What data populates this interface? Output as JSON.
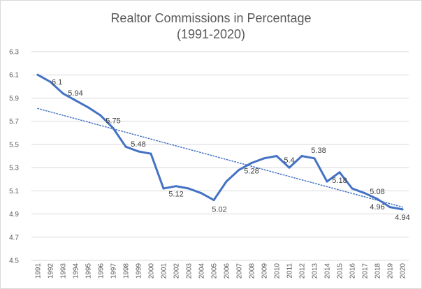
{
  "chart_data": {
    "type": "line",
    "title": "Realtor Commissions in Percentage",
    "subtitle": "(1991-2020)",
    "xlabel": "",
    "ylabel": "",
    "ylim": [
      4.5,
      6.3
    ],
    "yticks": [
      "4.5",
      "4.7",
      "4.9",
      "5.1",
      "5.3",
      "5.5",
      "5.7",
      "5.9",
      "6.1",
      "6.3"
    ],
    "ytick_values": [
      4.5,
      4.7,
      4.9,
      5.1,
      5.3,
      5.5,
      5.7,
      5.9,
      6.1,
      6.3
    ],
    "grid": true,
    "legend": "none",
    "categories": [
      "1991",
      "1992",
      "1993",
      "1994",
      "1995",
      "1996",
      "1997",
      "1998",
      "1999",
      "2000",
      "2001",
      "2002",
      "2003",
      "2004",
      "2005",
      "2006",
      "2007",
      "2008",
      "2009",
      "2010",
      "2011",
      "2012",
      "2013",
      "2014",
      "2015",
      "2016",
      "2017",
      "2018",
      "2019",
      "2020"
    ],
    "series": [
      {
        "name": "Realtor Commissions",
        "color": "#4472c4",
        "values": [
          6.1,
          6.04,
          5.94,
          5.88,
          5.82,
          5.75,
          5.64,
          5.48,
          5.44,
          5.42,
          5.12,
          5.14,
          5.12,
          5.08,
          5.02,
          5.18,
          5.28,
          5.34,
          5.38,
          5.4,
          5.3,
          5.4,
          5.38,
          5.18,
          5.26,
          5.12,
          5.08,
          5.03,
          4.96,
          4.94
        ]
      }
    ],
    "trendline": {
      "type": "linear",
      "style": "dotted",
      "color": "#4472c4",
      "start": 5.81,
      "end": 4.96
    },
    "annotations": [
      {
        "category": "1992",
        "label": "6.1",
        "position": "right"
      },
      {
        "category": "1994",
        "label": "5.94",
        "position": "above"
      },
      {
        "category": "1997",
        "label": "5.75",
        "position": "above"
      },
      {
        "category": "1999",
        "label": "5.48",
        "position": "above"
      },
      {
        "category": "2002",
        "label": "5.12",
        "position": "below"
      },
      {
        "category": "2005",
        "label": "5.02",
        "position": "below-right"
      },
      {
        "category": "2008",
        "label": "5.28",
        "position": "below"
      },
      {
        "category": "2011",
        "label": "5.4",
        "position": "above"
      },
      {
        "category": "2013",
        "label": "5.38",
        "position": "above-right"
      },
      {
        "category": "2015",
        "label": "5.18",
        "position": "below"
      },
      {
        "category": "2018",
        "label": "5.08",
        "position": "above"
      },
      {
        "category": "2018",
        "label": "4.96",
        "position": "below"
      },
      {
        "category": "2020",
        "label": "4.94",
        "position": "below"
      }
    ]
  }
}
